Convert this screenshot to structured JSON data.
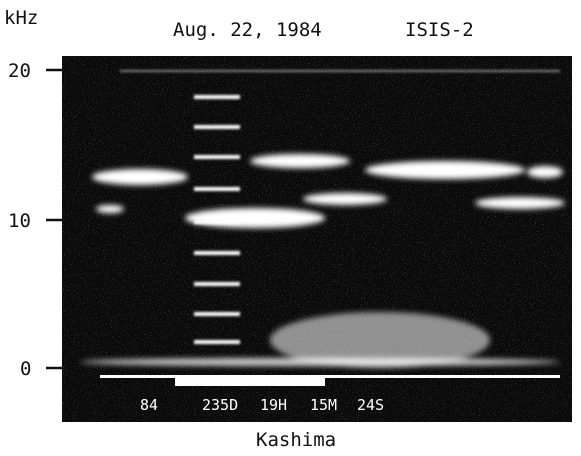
{
  "header": {
    "unit": "kHz",
    "date": "Aug. 22, 1984",
    "satellite": "ISIS-2"
  },
  "y_axis": {
    "ticks": [
      "20",
      "10",
      "0"
    ]
  },
  "timestamp": [
    "84",
    "235D",
    "19H",
    "15M",
    "24S"
  ],
  "caption": "Kashima"
}
